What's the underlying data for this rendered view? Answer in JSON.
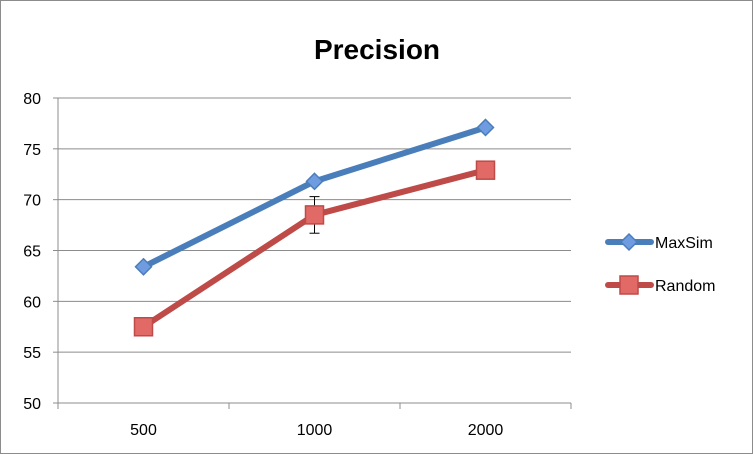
{
  "chart_data": {
    "type": "line",
    "title": "Precision",
    "xlabel": "",
    "ylabel": "",
    "categories": [
      "500",
      "1000",
      "2000"
    ],
    "ylim": [
      50,
      80
    ],
    "yticks": [
      50,
      55,
      60,
      65,
      70,
      75,
      80
    ],
    "grid": true,
    "legend_position": "right",
    "series": [
      {
        "name": "MaxSim",
        "values": [
          63.4,
          71.8,
          77.1
        ],
        "color": "#4a7ebb",
        "marker": "diamond"
      },
      {
        "name": "Random",
        "values": [
          57.5,
          68.5,
          72.9
        ],
        "color": "#be4b48",
        "marker": "square",
        "error": [
          0.9,
          1.8,
          0
        ]
      }
    ]
  }
}
